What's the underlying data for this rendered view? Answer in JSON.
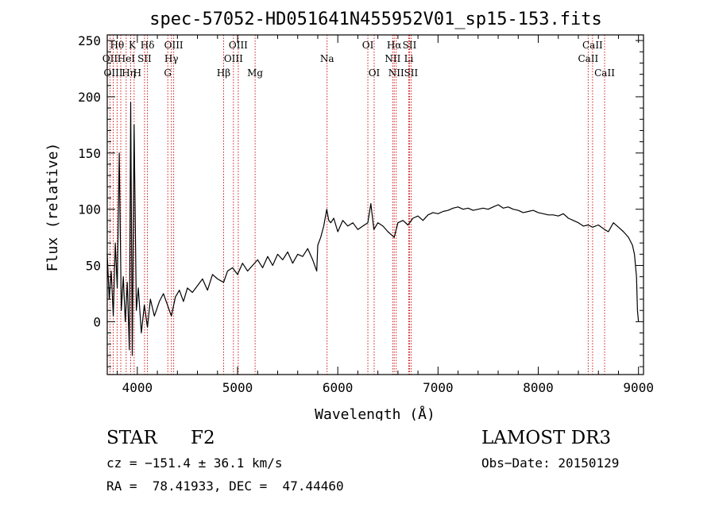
{
  "chart_data": {
    "type": "line",
    "title": "spec-57052-HD051641N455952V01_sp15-153.fits",
    "xlabel": "Wavelength (Å)",
    "ylabel": "Flux (relative)",
    "xlim": [
      3700,
      9050
    ],
    "ylim": [
      -47,
      255
    ],
    "xticks": [
      4000,
      5000,
      6000,
      7000,
      8000,
      9000
    ],
    "xtick_labels": [
      "4000",
      "5000",
      "6000",
      "7000",
      "8000",
      "9000"
    ],
    "yticks": [
      0,
      50,
      100,
      150,
      200,
      250
    ],
    "ytick_labels": [
      "0",
      "50",
      "100",
      "150",
      "200",
      "250"
    ],
    "series": [
      {
        "name": "flux",
        "x": [
          3700,
          3720,
          3740,
          3760,
          3780,
          3800,
          3820,
          3840,
          3860,
          3880,
          3900,
          3920,
          3934,
          3950,
          3968,
          3990,
          4010,
          4040,
          4070,
          4101,
          4130,
          4170,
          4220,
          4260,
          4300,
          4340,
          4380,
          4420,
          4460,
          4500,
          4550,
          4600,
          4650,
          4700,
          4750,
          4800,
          4861,
          4900,
          4950,
          5000,
          5050,
          5100,
          5150,
          5200,
          5250,
          5300,
          5350,
          5400,
          5450,
          5500,
          5550,
          5600,
          5650,
          5700,
          5750,
          5790,
          5800,
          5830,
          5860,
          5890,
          5910,
          5930,
          5960,
          6000,
          6050,
          6100,
          6150,
          6200,
          6250,
          6300,
          6330,
          6360,
          6400,
          6450,
          6500,
          6563,
          6600,
          6650,
          6700,
          6750,
          6800,
          6850,
          6900,
          6950,
          7000,
          7050,
          7100,
          7150,
          7200,
          7250,
          7300,
          7350,
          7400,
          7450,
          7500,
          7550,
          7600,
          7650,
          7700,
          7750,
          7800,
          7850,
          7900,
          7950,
          8000,
          8050,
          8100,
          8150,
          8200,
          8250,
          8300,
          8350,
          8400,
          8450,
          8498,
          8542,
          8600,
          8662,
          8700,
          8750,
          8800,
          8850,
          8900,
          8940,
          8960,
          8980,
          8990,
          9000
        ],
        "y": [
          60,
          20,
          45,
          5,
          70,
          30,
          150,
          10,
          40,
          0,
          35,
          -25,
          195,
          -30,
          175,
          10,
          30,
          -10,
          15,
          -5,
          20,
          5,
          18,
          25,
          15,
          5,
          22,
          28,
          18,
          30,
          26,
          32,
          38,
          28,
          42,
          38,
          35,
          45,
          48,
          42,
          52,
          45,
          50,
          55,
          48,
          58,
          50,
          60,
          55,
          62,
          52,
          60,
          58,
          65,
          55,
          45,
          68,
          75,
          85,
          100,
          90,
          88,
          92,
          80,
          90,
          85,
          88,
          82,
          85,
          88,
          105,
          82,
          88,
          85,
          80,
          75,
          88,
          90,
          86,
          92,
          94,
          90,
          95,
          97,
          96,
          98,
          99,
          101,
          102,
          100,
          101,
          99,
          100,
          101,
          100,
          102,
          104,
          101,
          102,
          100,
          99,
          97,
          98,
          99,
          97,
          96,
          95,
          95,
          94,
          96,
          92,
          90,
          88,
          85,
          86,
          84,
          86,
          82,
          80,
          88,
          84,
          80,
          75,
          68,
          60,
          40,
          10,
          0
        ]
      }
    ],
    "lines": [
      {
        "label": "Hθ",
        "x": 3798,
        "row": 1,
        "dx": 0
      },
      {
        "label": "OII",
        "x": 3727,
        "row": 2,
        "dx": 0
      },
      {
        "label": "OIII",
        "x": 3760,
        "row": 3,
        "dx": 0
      },
      {
        "label": "K",
        "x": 3934,
        "row": 1,
        "dx": 2
      },
      {
        "label": "HeI",
        "x": 3889,
        "row": 2,
        "dx": 0
      },
      {
        "label": "Hη",
        "x": 3835,
        "row": 3,
        "dx": 10
      },
      {
        "label": "H",
        "x": 3968,
        "row": 3,
        "dx": 4
      },
      {
        "label": "Hδ",
        "x": 4101,
        "row": 1,
        "dx": 0
      },
      {
        "label": "SII",
        "x": 4072,
        "row": 2,
        "dx": 0
      },
      {
        "label": "OIII",
        "x": 4363,
        "row": 1,
        "dx": 0
      },
      {
        "label": "Hγ",
        "x": 4340,
        "row": 2,
        "dx": 0
      },
      {
        "label": "G",
        "x": 4304,
        "row": 3,
        "dx": 0
      },
      {
        "label": "OIII",
        "x": 5007,
        "row": 1,
        "dx": 0
      },
      {
        "label": "OIII",
        "x": 4959,
        "row": 2,
        "dx": 0
      },
      {
        "label": "Hβ",
        "x": 4861,
        "row": 3,
        "dx": 0
      },
      {
        "label": "Mg",
        "x": 5175,
        "row": 3,
        "dx": 0
      },
      {
        "label": "Na",
        "x": 5893,
        "row": 2,
        "dx": 0
      },
      {
        "label": "OI",
        "x": 6300,
        "row": 1,
        "dx": 0
      },
      {
        "label": "OI",
        "x": 6363,
        "row": 3,
        "dx": 0
      },
      {
        "label": "Hα",
        "x": 6563,
        "row": 1,
        "dx": 0
      },
      {
        "label": "SII",
        "x": 6716,
        "row": 1,
        "dx": 0
      },
      {
        "label": "NII",
        "x": 6548,
        "row": 2,
        "dx": 0
      },
      {
        "label": "Li",
        "x": 6708,
        "row": 2,
        "dx": 0
      },
      {
        "label": "NII",
        "x": 6583,
        "row": 3,
        "dx": 0
      },
      {
        "label": "SII",
        "x": 6731,
        "row": 3,
        "dx": 0
      },
      {
        "label": "CaII",
        "x": 8542,
        "row": 1,
        "dx": 0
      },
      {
        "label": "CaII",
        "x": 8498,
        "row": 2,
        "dx": 0
      },
      {
        "label": "CaII",
        "x": 8662,
        "row": 3,
        "dx": 0
      }
    ]
  },
  "info": {
    "object_class": "STAR",
    "subclass": "F2",
    "survey": "LAMOST DR3",
    "cz": "cz = −151.4 ± 36.1 km/s",
    "obs_date": "Obs−Date: 20150129",
    "coords": "RA =  78.41933, DEC =  47.44460"
  },
  "colors": {
    "axis": "#000000",
    "spectrum": "#000000",
    "line_marker": "#cc0000"
  }
}
